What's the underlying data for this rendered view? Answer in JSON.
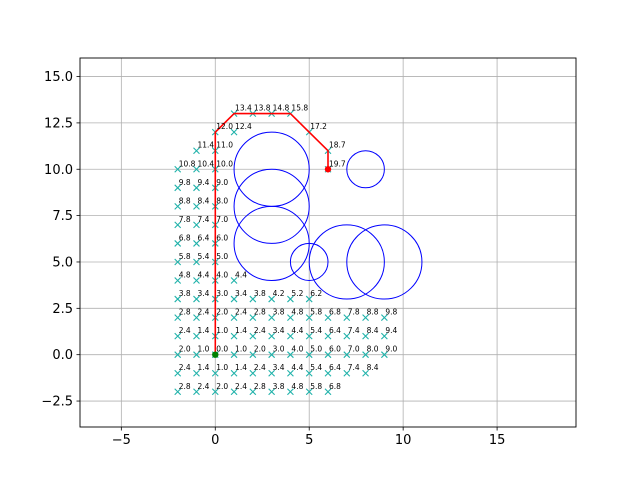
{
  "chart_data": {
    "type": "scatter",
    "title": "",
    "xlabel": "",
    "ylabel": "",
    "xlim": [
      -7.2,
      19.2
    ],
    "ylim": [
      -3.9,
      16.0
    ],
    "x_ticks": [
      -5,
      0,
      5,
      10,
      15
    ],
    "y_ticks": [
      -2.5,
      0.0,
      2.5,
      5.0,
      7.5,
      10.0,
      12.5,
      15.0
    ],
    "x_tick_labels": [
      "−5",
      "0",
      "5",
      "10",
      "15"
    ],
    "y_tick_labels": [
      "−2.5",
      "0.0",
      "2.5",
      "5.0",
      "7.5",
      "10.0",
      "12.5",
      "15.0"
    ],
    "grid": true,
    "colors": {
      "nodes": "#20b2aa",
      "path": "#ff0000",
      "obstacles": "#0000ff",
      "start": "#008000",
      "goal": "#ff0000",
      "grid": "#b0b0b0"
    },
    "start": {
      "x": 0,
      "y": 0
    },
    "goal": {
      "x": 6,
      "y": 10
    },
    "obstacles": [
      {
        "x": 3,
        "y": 10,
        "r": 2
      },
      {
        "x": 3,
        "y": 8,
        "r": 2
      },
      {
        "x": 3,
        "y": 6,
        "r": 2
      },
      {
        "x": 5,
        "y": 5,
        "r": 1
      },
      {
        "x": 7,
        "y": 5,
        "r": 2
      },
      {
        "x": 9,
        "y": 5,
        "r": 2
      },
      {
        "x": 8,
        "y": 10,
        "r": 1
      }
    ],
    "path": [
      [
        0,
        0
      ],
      [
        0,
        1
      ],
      [
        0,
        2
      ],
      [
        0,
        3
      ],
      [
        0,
        4
      ],
      [
        0,
        5
      ],
      [
        0,
        6
      ],
      [
        0,
        7
      ],
      [
        0,
        8
      ],
      [
        0,
        9
      ],
      [
        0,
        10
      ],
      [
        0,
        11
      ],
      [
        0,
        12
      ],
      [
        1,
        13
      ],
      [
        2,
        13
      ],
      [
        3,
        13
      ],
      [
        4,
        13
      ],
      [
        5,
        12
      ],
      [
        6,
        11
      ],
      [
        6,
        10
      ]
    ],
    "nodes": [
      [
        -2,
        -2,
        "2.8"
      ],
      [
        -1,
        -2,
        "2.4"
      ],
      [
        0,
        -2,
        "2.0"
      ],
      [
        1,
        -2,
        "2.4"
      ],
      [
        2,
        -2,
        "2.8"
      ],
      [
        3,
        -2,
        "3.8"
      ],
      [
        4,
        -2,
        "4.8"
      ],
      [
        5,
        -2,
        "5.8"
      ],
      [
        6,
        -2,
        "6.8"
      ],
      [
        -2,
        -1,
        "2.4"
      ],
      [
        -1,
        -1,
        "1.4"
      ],
      [
        0,
        -1,
        "1.0"
      ],
      [
        1,
        -1,
        "1.4"
      ],
      [
        2,
        -1,
        "2.4"
      ],
      [
        3,
        -1,
        "3.4"
      ],
      [
        4,
        -1,
        "4.4"
      ],
      [
        5,
        -1,
        "5.4"
      ],
      [
        6,
        -1,
        "6.4"
      ],
      [
        7,
        -1,
        "7.4"
      ],
      [
        8,
        -1,
        "8.4"
      ],
      [
        -2,
        0,
        "2.0"
      ],
      [
        -1,
        0,
        "1.0"
      ],
      [
        0,
        0,
        "0.0"
      ],
      [
        1,
        0,
        "1.0"
      ],
      [
        2,
        0,
        "2.0"
      ],
      [
        3,
        0,
        "3.0"
      ],
      [
        4,
        0,
        "4.0"
      ],
      [
        5,
        0,
        "5.0"
      ],
      [
        6,
        0,
        "6.0"
      ],
      [
        7,
        0,
        "7.0"
      ],
      [
        8,
        0,
        "8.0"
      ],
      [
        9,
        0,
        "9.0"
      ],
      [
        -2,
        1,
        "2.4"
      ],
      [
        -1,
        1,
        "1.4"
      ],
      [
        0,
        1,
        "1.0"
      ],
      [
        1,
        1,
        "1.4"
      ],
      [
        2,
        1,
        "2.4"
      ],
      [
        3,
        1,
        "3.4"
      ],
      [
        4,
        1,
        "4.4"
      ],
      [
        5,
        1,
        "5.4"
      ],
      [
        6,
        1,
        "6.4"
      ],
      [
        7,
        1,
        "7.4"
      ],
      [
        8,
        1,
        "8.4"
      ],
      [
        9,
        1,
        "9.4"
      ],
      [
        -2,
        2,
        "2.8"
      ],
      [
        -1,
        2,
        "2.4"
      ],
      [
        0,
        2,
        "2.0"
      ],
      [
        1,
        2,
        "2.4"
      ],
      [
        2,
        2,
        "2.8"
      ],
      [
        3,
        2,
        "3.8"
      ],
      [
        4,
        2,
        "4.8"
      ],
      [
        5,
        2,
        "5.8"
      ],
      [
        6,
        2,
        "6.8"
      ],
      [
        7,
        2,
        "7.8"
      ],
      [
        8,
        2,
        "8.8"
      ],
      [
        9,
        2,
        "9.8"
      ],
      [
        -2,
        3,
        "3.8"
      ],
      [
        -1,
        3,
        "3.4"
      ],
      [
        0,
        3,
        "3.0"
      ],
      [
        1,
        3,
        "3.4"
      ],
      [
        2,
        3,
        "3.8"
      ],
      [
        3,
        3,
        "4.2"
      ],
      [
        4,
        3,
        "5.2"
      ],
      [
        5,
        3,
        "6.2"
      ],
      [
        -2,
        4,
        "4.8"
      ],
      [
        -1,
        4,
        "4.4"
      ],
      [
        0,
        4,
        "4.0"
      ],
      [
        1,
        4,
        "4.4"
      ],
      [
        -2,
        5,
        "5.8"
      ],
      [
        -1,
        5,
        "5.4"
      ],
      [
        0,
        5,
        "5.0"
      ],
      [
        -2,
        6,
        "6.8"
      ],
      [
        -1,
        6,
        "6.4"
      ],
      [
        0,
        6,
        "6.0"
      ],
      [
        -2,
        7,
        "7.8"
      ],
      [
        -1,
        7,
        "7.4"
      ],
      [
        0,
        7,
        "7.0"
      ],
      [
        -2,
        8,
        "8.8"
      ],
      [
        -1,
        8,
        "8.4"
      ],
      [
        0,
        8,
        "8.0"
      ],
      [
        -2,
        9,
        "9.8"
      ],
      [
        -1,
        9,
        "9.4"
      ],
      [
        0,
        9,
        "9.0"
      ],
      [
        -2,
        10,
        "10.8"
      ],
      [
        -1,
        10,
        "10.4"
      ],
      [
        0,
        10,
        "10.0"
      ],
      [
        -1,
        11,
        "11.4"
      ],
      [
        0,
        11,
        "11.0"
      ],
      [
        0,
        12,
        "12.0"
      ],
      [
        1,
        12,
        "12.4"
      ],
      [
        1,
        13,
        "13.4"
      ],
      [
        2,
        13,
        "13.8"
      ],
      [
        3,
        13,
        "14.8"
      ],
      [
        4,
        13,
        "15.8"
      ],
      [
        5,
        12,
        "17.2"
      ],
      [
        6,
        11,
        "18.7"
      ],
      [
        6,
        10,
        "19.7"
      ]
    ]
  }
}
